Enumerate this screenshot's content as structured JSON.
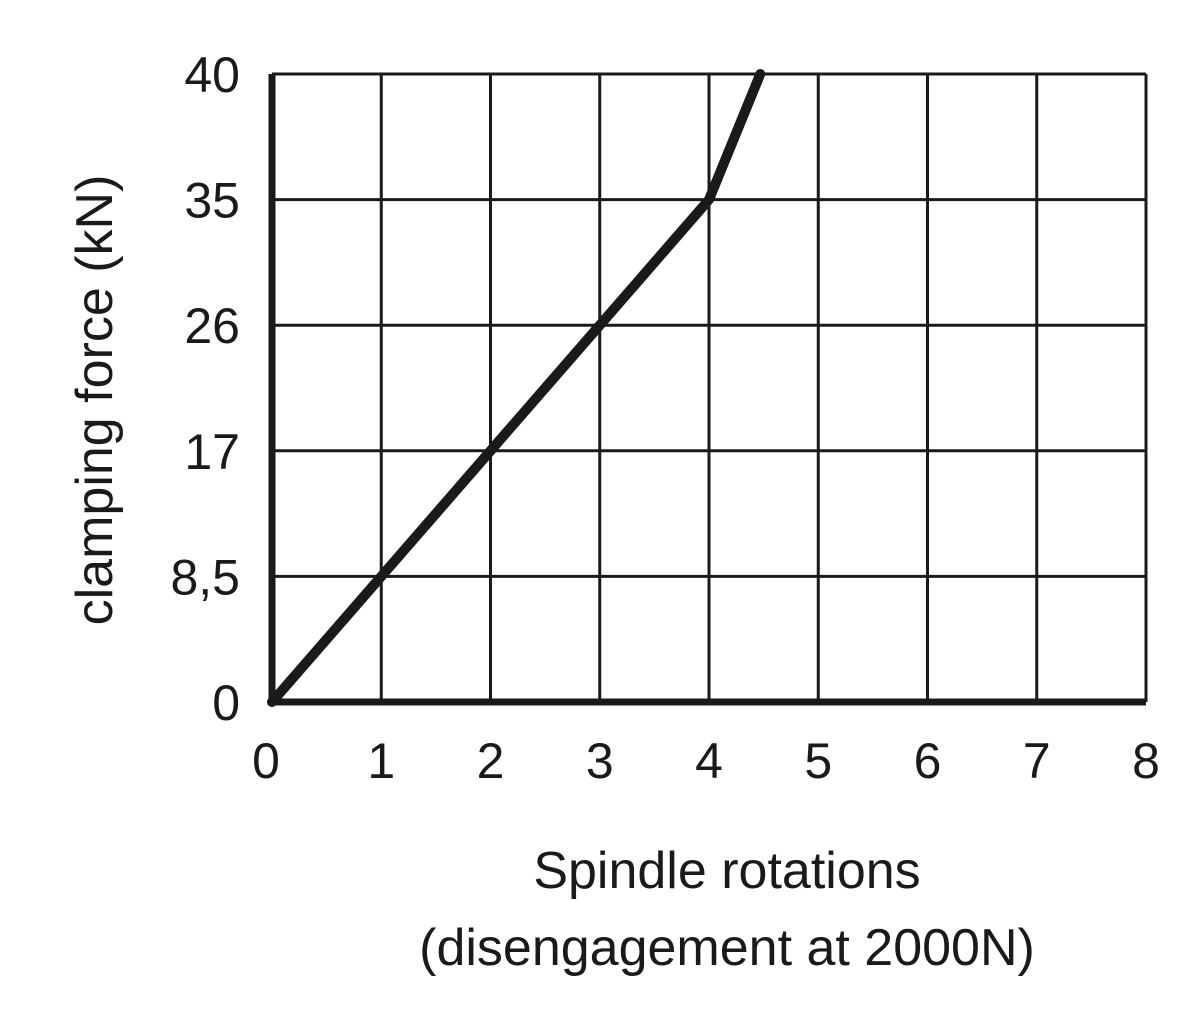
{
  "chart_data": {
    "type": "line",
    "title": "",
    "xlabel_line1": "Spindle rotations",
    "xlabel_line2": "(disengagement at 2000N)",
    "ylabel": "clamping force (kN)",
    "x_ticks": [
      "0",
      "1",
      "2",
      "3",
      "4",
      "5",
      "6",
      "7",
      "8"
    ],
    "y_ticks": [
      "0",
      "8,5",
      "17",
      "26",
      "35",
      "40"
    ],
    "y_tick_values": [
      0,
      8.5,
      17,
      26,
      35,
      40
    ],
    "xlim": [
      0,
      8
    ],
    "grid": true,
    "line_color": "#1a1a1a",
    "series": [
      {
        "x": [
          0,
          1,
          2,
          3,
          4,
          4.47
        ],
        "y": [
          0,
          8.5,
          17,
          26,
          35,
          40
        ]
      }
    ]
  }
}
